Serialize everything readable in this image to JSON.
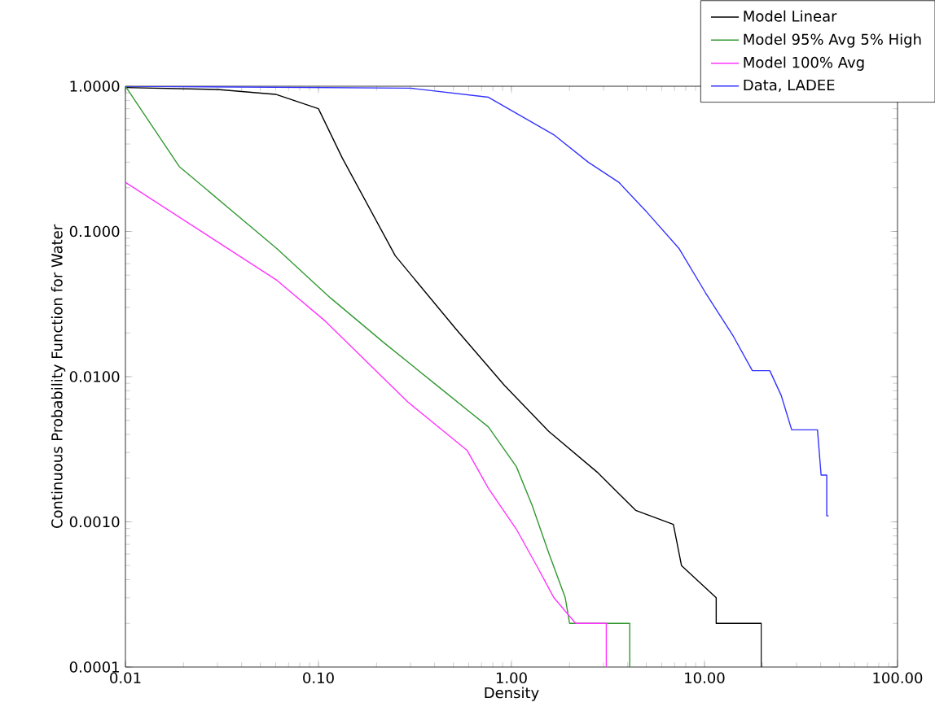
{
  "chart_data": {
    "type": "line",
    "xlabel": "Density",
    "ylabel": "Continuous Probability Function for Water",
    "log": "xy",
    "legend": "top right",
    "marker": "none",
    "line_style": "solid",
    "xlim": [
      0.01,
      100
    ],
    "ylim": [
      0.0001,
      1
    ],
    "xticks": [
      {
        "value": 0.01,
        "label": "0.01"
      },
      {
        "value": 0.1,
        "label": "0.10"
      },
      {
        "value": 1,
        "label": "1.00"
      },
      {
        "value": 10,
        "label": "10.00"
      },
      {
        "value": 100,
        "label": "100.00"
      }
    ],
    "yticks": [
      {
        "value": 0.0001,
        "label": "0.0001"
      },
      {
        "value": 0.001,
        "label": "0.0010"
      },
      {
        "value": 0.01,
        "label": "0.0100"
      },
      {
        "value": 0.1,
        "label": "0.1000"
      },
      {
        "value": 1,
        "label": "1.0000"
      }
    ],
    "series": [
      {
        "name": "Model Linear",
        "color": "#000000",
        "x": [
          0.01,
          0.03,
          0.06,
          0.1,
          0.133,
          0.25,
          0.52,
          0.92,
          1.56,
          2.78,
          4.4,
          6.9,
          7.6,
          11.5,
          11.5,
          19.7,
          19.7
        ],
        "values": [
          0.98,
          0.95,
          0.88,
          0.7,
          0.32,
          0.068,
          0.021,
          0.0087,
          0.0042,
          0.0022,
          0.0012,
          0.00096,
          0.0005,
          0.0003,
          0.0002,
          0.0002,
          0.0001
        ]
      },
      {
        "name": "Model 95% Avg 5% High",
        "color": "#339933",
        "x": [
          0.01,
          0.019,
          0.061,
          0.115,
          0.22,
          0.42,
          0.76,
          1.06,
          1.28,
          1.56,
          1.9,
          2.0,
          4.1,
          4.1
        ],
        "values": [
          1.0,
          0.28,
          0.076,
          0.035,
          0.017,
          0.0085,
          0.0045,
          0.0024,
          0.0013,
          0.00061,
          0.0003,
          0.0002,
          0.0002,
          0.0001
        ]
      },
      {
        "name": "Model 100% Avg",
        "color": "#ff33ff",
        "x": [
          0.01,
          0.061,
          0.109,
          0.29,
          0.59,
          0.76,
          1.06,
          1.35,
          1.66,
          2.15,
          3.1,
          3.1
        ],
        "values": [
          0.218,
          0.046,
          0.024,
          0.0067,
          0.0031,
          0.0017,
          0.00089,
          0.0005,
          0.0003,
          0.0002,
          0.0002,
          0.0001
        ]
      },
      {
        "name": "Data, LADEE",
        "color": "#3333ff",
        "x": [
          0.01,
          0.3,
          0.76,
          1.67,
          2.5,
          3.6,
          5.0,
          7.4,
          10.1,
          14.1,
          17.7,
          21.8,
          25,
          28.3,
          38.5,
          40.2,
          43,
          43,
          44
        ],
        "values": [
          1.0,
          0.97,
          0.84,
          0.46,
          0.3,
          0.218,
          0.137,
          0.076,
          0.038,
          0.019,
          0.011,
          0.011,
          0.0074,
          0.0043,
          0.0043,
          0.0021,
          0.0021,
          0.0011,
          0.0011
        ]
      }
    ]
  }
}
